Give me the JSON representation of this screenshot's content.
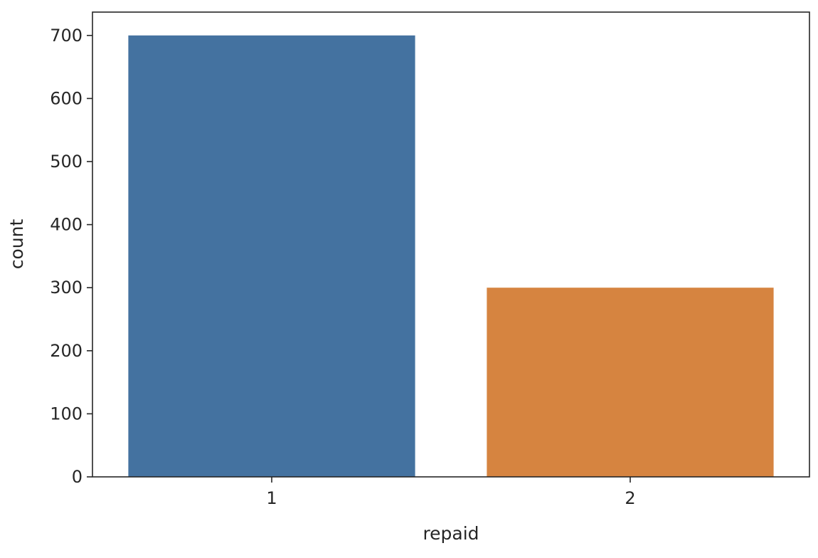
{
  "chart_data": {
    "type": "bar",
    "categories": [
      "1",
      "2"
    ],
    "values": [
      700,
      300
    ],
    "colors": [
      "#4472a0",
      "#d68440"
    ],
    "xlabel": "repaid",
    "ylabel": "count",
    "ylim": [
      0,
      737
    ],
    "yticks": [
      0,
      100,
      200,
      300,
      400,
      500,
      600,
      700
    ],
    "grid": false,
    "legend": "none"
  }
}
